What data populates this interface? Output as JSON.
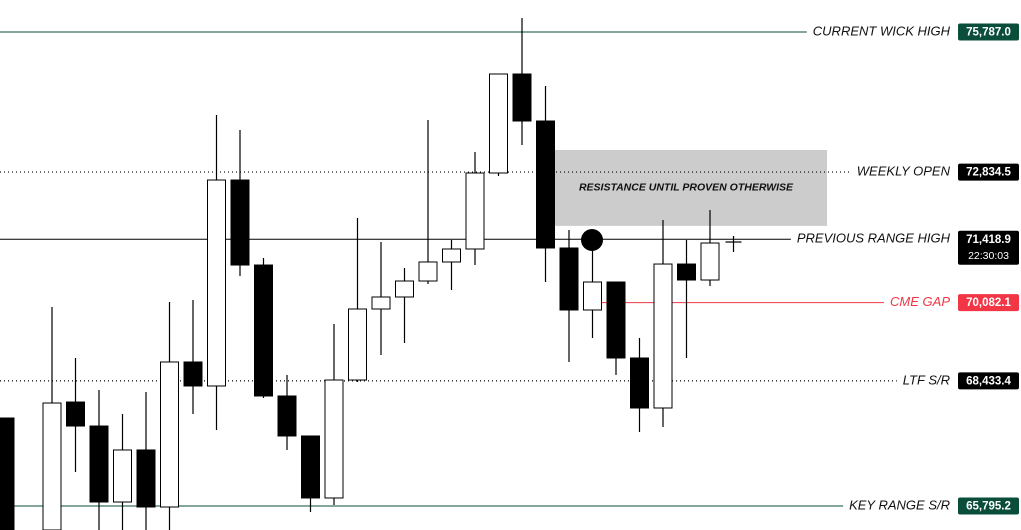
{
  "chart_data": {
    "type": "candlestick",
    "ylim": [
      65289,
      76462
    ],
    "up_color": "#ffffff",
    "down_color": "#000000",
    "open": [
      67650,
      65289,
      67987,
      67481,
      65879,
      66976,
      65774,
      68831,
      68325,
      72667,
      70875,
      68114,
      67271,
      65964,
      68451,
      69948,
      70201,
      70538,
      70939,
      71213,
      72815,
      74902,
      73911,
      71234,
      69927,
      70517,
      68915,
      67861,
      70896,
      70559,
      71360
    ],
    "high": [
      67650,
      69990,
      68915,
      68240,
      67734,
      68198,
      70095,
      70138,
      74037,
      73721,
      71023,
      68557,
      67271,
      69632,
      71866,
      71360,
      70812,
      73932,
      71402,
      73257,
      74902,
      76082,
      74649,
      71613,
      71192,
      70517,
      69337,
      71824,
      71402,
      72035,
      71487
    ],
    "low": [
      65289,
      65289,
      66512,
      65289,
      65289,
      65289,
      65289,
      67734,
      67397,
      70643,
      68072,
      66976,
      65669,
      65816,
      68409,
      68978,
      69231,
      70475,
      70348,
      70875,
      72751,
      73405,
      70517,
      68831,
      69337,
      68557,
      67355,
      67460,
      68915,
      70433,
      71149
    ],
    "close": [
      65289,
      67966,
      67481,
      65879,
      66976,
      65774,
      68831,
      68325,
      72667,
      70875,
      68114,
      67271,
      65964,
      68451,
      69948,
      70201,
      70538,
      70939,
      71213,
      72815,
      74902,
      73911,
      71234,
      69927,
      70517,
      68915,
      67861,
      70896,
      70559,
      71339,
      71360
    ],
    "levels": [
      {
        "name": "CURRENT WICK HIGH",
        "value": 75787,
        "value_label": "75,787.0",
        "color": "#0b4d3b",
        "style": "solid"
      },
      {
        "name": "WEEKLY OPEN",
        "value": 72834.5,
        "value_label": "72,834.5",
        "color": "#000000",
        "style": "dotted"
      },
      {
        "name": "PREVIOUS RANGE HIGH",
        "value": 71418.9,
        "value_label": "71,418.9",
        "color": "#000000",
        "style": "solid",
        "countdown": "22:30:03"
      },
      {
        "name": "CME GAP",
        "value": 70082.1,
        "value_label": "70,082.1",
        "color": "#f23645",
        "style": "solid"
      },
      {
        "name": "LTF S/R",
        "value": 68433.4,
        "value_label": "68,433.4",
        "color": "#000000",
        "style": "dotted"
      },
      {
        "name": "KEY RANGE S/R",
        "value": 65795.2,
        "value_label": "65,795.2",
        "color": "#0b4d3b",
        "style": "solid"
      }
    ],
    "zone": {
      "label": "RESISTANCE UNTIL PROVEN OTHERWISE",
      "high": 73300,
      "low": 71700,
      "color": "#cccccc"
    }
  }
}
